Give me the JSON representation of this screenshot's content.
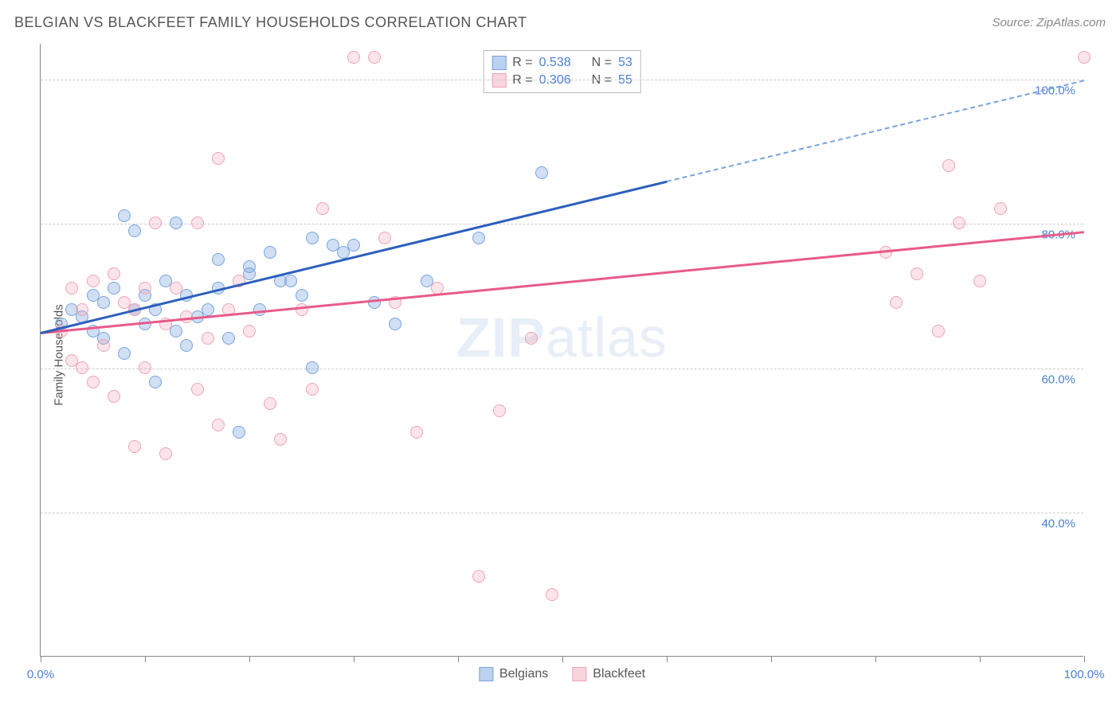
{
  "title": "BELGIAN VS BLACKFEET FAMILY HOUSEHOLDS CORRELATION CHART",
  "source": "Source: ZipAtlas.com",
  "y_axis_label": "Family Households",
  "watermark_bold": "ZIP",
  "watermark_light": "atlas",
  "chart": {
    "type": "scatter",
    "xlim": [
      0,
      100
    ],
    "ylim": [
      20,
      105
    ],
    "x_ticks": [
      0,
      10,
      20,
      30,
      40,
      50,
      60,
      70,
      80,
      90,
      100
    ],
    "x_tick_labels": {
      "0": "0.0%",
      "100": "100.0%"
    },
    "y_gridlines": [
      40,
      60,
      80,
      100
    ],
    "y_tick_labels": {
      "40": "40.0%",
      "60": "60.0%",
      "80": "80.0%",
      "100": "100.0%"
    },
    "background_color": "#ffffff",
    "grid_color": "#cccccc",
    "axis_color": "#888888",
    "marker_radius": 8,
    "series": [
      {
        "name": "Belgians",
        "color_fill": "rgba(120,164,222,0.35)",
        "color_stroke": "#78a4de",
        "trend_color": "#2c5fbd",
        "R": "0.538",
        "N": "53",
        "trend": {
          "x1": 0,
          "y1": 65,
          "x2": 60,
          "y2": 86,
          "extrap_x2": 100,
          "extrap_y2": 100
        },
        "points": [
          [
            2,
            66
          ],
          [
            3,
            68
          ],
          [
            4,
            67
          ],
          [
            5,
            70
          ],
          [
            5,
            65
          ],
          [
            6,
            69
          ],
          [
            6,
            64
          ],
          [
            7,
            71
          ],
          [
            8,
            81
          ],
          [
            8,
            62
          ],
          [
            9,
            68
          ],
          [
            9,
            79
          ],
          [
            10,
            70
          ],
          [
            10,
            66
          ],
          [
            11,
            58
          ],
          [
            11,
            68
          ],
          [
            12,
            72
          ],
          [
            13,
            80
          ],
          [
            13,
            65
          ],
          [
            14,
            70
          ],
          [
            14,
            63
          ],
          [
            15,
            67
          ],
          [
            16,
            68
          ],
          [
            17,
            75
          ],
          [
            17,
            71
          ],
          [
            18,
            64
          ],
          [
            19,
            51
          ],
          [
            20,
            74
          ],
          [
            20,
            73
          ],
          [
            21,
            68
          ],
          [
            22,
            76
          ],
          [
            23,
            72
          ],
          [
            24,
            72
          ],
          [
            25,
            70
          ],
          [
            26,
            60
          ],
          [
            26,
            78
          ],
          [
            28,
            77
          ],
          [
            29,
            76
          ],
          [
            30,
            77
          ],
          [
            32,
            69
          ],
          [
            34,
            66
          ],
          [
            37,
            72
          ],
          [
            42,
            78
          ],
          [
            48,
            87
          ]
        ]
      },
      {
        "name": "Blackfeet",
        "color_fill": "rgba(240,150,170,0.25)",
        "color_stroke": "#eca4b4",
        "trend_color": "#e85a8a",
        "R": "0.306",
        "N": "55",
        "trend": {
          "x1": 0,
          "y1": 65,
          "x2": 100,
          "y2": 79
        },
        "points": [
          [
            2,
            65
          ],
          [
            3,
            61
          ],
          [
            3,
            71
          ],
          [
            4,
            68
          ],
          [
            4,
            60
          ],
          [
            5,
            72
          ],
          [
            5,
            58
          ],
          [
            6,
            63
          ],
          [
            7,
            73
          ],
          [
            7,
            56
          ],
          [
            8,
            69
          ],
          [
            9,
            68
          ],
          [
            9,
            49
          ],
          [
            10,
            60
          ],
          [
            10,
            71
          ],
          [
            11,
            80
          ],
          [
            12,
            66
          ],
          [
            12,
            48
          ],
          [
            13,
            71
          ],
          [
            14,
            67
          ],
          [
            15,
            80
          ],
          [
            15,
            57
          ],
          [
            16,
            64
          ],
          [
            17,
            89
          ],
          [
            17,
            52
          ],
          [
            18,
            68
          ],
          [
            19,
            72
          ],
          [
            20,
            65
          ],
          [
            22,
            55
          ],
          [
            23,
            50
          ],
          [
            25,
            68
          ],
          [
            26,
            57
          ],
          [
            27,
            82
          ],
          [
            30,
            103
          ],
          [
            32,
            103
          ],
          [
            33,
            78
          ],
          [
            34,
            69
          ],
          [
            36,
            51
          ],
          [
            38,
            71
          ],
          [
            42,
            31
          ],
          [
            44,
            54
          ],
          [
            47,
            64
          ],
          [
            49,
            28.5
          ],
          [
            81,
            76
          ],
          [
            82,
            69
          ],
          [
            84,
            73
          ],
          [
            86,
            65
          ],
          [
            87,
            88
          ],
          [
            88,
            80
          ],
          [
            90,
            72
          ],
          [
            92,
            82
          ],
          [
            100,
            103
          ]
        ]
      }
    ]
  },
  "stats_box": {
    "r_label": "R =",
    "n_label": "N ="
  },
  "legend": {
    "items": [
      "Belgians",
      "Blackfeet"
    ]
  }
}
